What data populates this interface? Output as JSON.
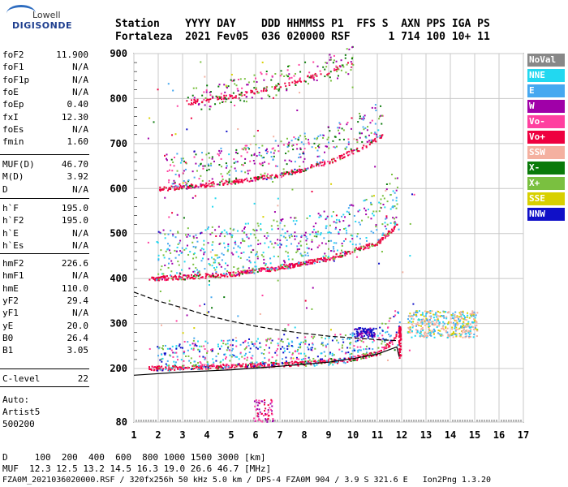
{
  "logo": {
    "line1": "Lowell",
    "line2": "DIGISONDE"
  },
  "header": {
    "labels": "Station    YYYY DAY    DDD HHMMSS P1  FFS S  AXN PPS IGA PS",
    "values": "Fortaleza  2021 Fev05  036 020000 RSF      1 714 100 10+ 11"
  },
  "params_group1": [
    {
      "name": "foF2",
      "value": "11.900"
    },
    {
      "name": "foF1",
      "value": "N/A"
    },
    {
      "name": "foF1p",
      "value": "N/A"
    },
    {
      "name": "foE",
      "value": "N/A"
    },
    {
      "name": "foEp",
      "value": "0.40"
    },
    {
      "name": "fxI",
      "value": "12.30"
    },
    {
      "name": "foEs",
      "value": "N/A"
    },
    {
      "name": "fmin",
      "value": "1.60"
    }
  ],
  "params_group2": [
    {
      "name": "MUF(D)",
      "value": "46.70"
    },
    {
      "name": "M(D)",
      "value": "3.92"
    },
    {
      "name": "D",
      "value": "N/A"
    }
  ],
  "params_group3": [
    {
      "name": "h`F",
      "value": "195.0"
    },
    {
      "name": "h`F2",
      "value": "195.0"
    },
    {
      "name": "h`E",
      "value": "N/A"
    },
    {
      "name": "h`Es",
      "value": "N/A"
    }
  ],
  "params_group4": [
    {
      "name": "hmF2",
      "value": "226.6"
    },
    {
      "name": "hmF1",
      "value": "N/A"
    },
    {
      "name": "hmE",
      "value": "110.0"
    },
    {
      "name": "yF2",
      "value": "29.4"
    },
    {
      "name": "yF1",
      "value": "N/A"
    },
    {
      "name": "yE",
      "value": "20.0"
    },
    {
      "name": "B0",
      "value": "26.4"
    },
    {
      "name": "B1",
      "value": "3.05"
    }
  ],
  "params_group5": [
    {
      "name": "C-level",
      "value": "22"
    }
  ],
  "auto": {
    "line1": "Auto:",
    "line2": "Artist5",
    "line3": "500200"
  },
  "bottom": {
    "d_line": "D     100  200  400  600  800 1000 1500 3000 [km]",
    "muf_line": "MUF  12.3 12.5 13.2 14.5 16.3 19.0 26.6 46.7 [MHz]",
    "file_line": "FZA0M_2021036020000.RSF / 320fx256h 50 kHz 5.0 km / DPS-4 FZA0M 904 / 3.9 S 321.6 E   Ion2Png 1.3.20"
  },
  "legend": [
    {
      "label": "NoVal",
      "color": "#888888"
    },
    {
      "label": "NNE",
      "color": "#22d8f0"
    },
    {
      "label": "E",
      "color": "#46a8f0"
    },
    {
      "label": "W",
      "color": "#a000a8"
    },
    {
      "label": "Vo-",
      "color": "#ff40a0"
    },
    {
      "label": "Vo+",
      "color": "#ee0040"
    },
    {
      "label": "SSW",
      "color": "#f4b0a0"
    },
    {
      "label": "X-",
      "color": "#0a7a0a"
    },
    {
      "label": "X+",
      "color": "#7ac040"
    },
    {
      "label": "SSE",
      "color": "#d8d000"
    },
    {
      "label": "NNW",
      "color": "#1010c8"
    }
  ],
  "chart_data": {
    "type": "scatter",
    "xlabel": "",
    "ylabel": "",
    "xlim": [
      1,
      17
    ],
    "ylim": [
      80,
      900
    ],
    "x_ticks": [
      "1",
      "2",
      "3",
      "4",
      "5",
      "6",
      "7",
      "8",
      "9",
      "10",
      "11",
      "12",
      "13",
      "14",
      "15",
      "16",
      "17"
    ],
    "y_ticks": [
      "80",
      "200",
      "300",
      "400",
      "500",
      "600",
      "700",
      "800",
      "900"
    ],
    "y_scale": "piecewise (80-200 compressed)",
    "grid": true,
    "traces": [
      {
        "name": "first hop F2 trace",
        "freq": [
          1.6,
          3,
          5,
          7,
          9,
          10,
          11,
          11.6,
          11.9
        ],
        "height": [
          200,
          203,
          206,
          210,
          215,
          222,
          235,
          260,
          290
        ]
      },
      {
        "name": "second hop",
        "freq": [
          1.6,
          3,
          5,
          7,
          9,
          11,
          11.8
        ],
        "height": [
          400,
          403,
          410,
          425,
          445,
          480,
          520
        ]
      },
      {
        "name": "third hop",
        "freq": [
          2,
          3,
          5,
          7,
          9,
          10.5,
          11.2
        ],
        "height": [
          600,
          603,
          615,
          630,
          660,
          695,
          720
        ]
      },
      {
        "name": "fourth hop",
        "freq": [
          3,
          5,
          7,
          9,
          10
        ],
        "height": [
          790,
          805,
          830,
          860,
          880
        ]
      }
    ],
    "profile_solid": {
      "freq": [
        1,
        3,
        5,
        7,
        9,
        10,
        11,
        11.8,
        11.9
      ],
      "height": [
        185,
        192,
        197,
        205,
        214,
        222,
        232,
        248,
        226
      ]
    },
    "profile_dashed": {
      "freq": [
        1,
        2,
        3,
        4,
        5,
        6,
        7,
        8,
        9,
        10,
        11,
        11.8
      ],
      "height": [
        370,
        350,
        335,
        318,
        305,
        294,
        285,
        278,
        272,
        268,
        264,
        262
      ]
    }
  }
}
